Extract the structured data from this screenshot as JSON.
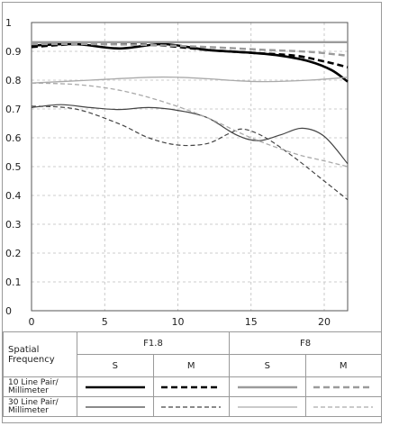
{
  "chart_data": {
    "type": "line",
    "xlim": [
      0,
      21.6
    ],
    "ylim": [
      0,
      1
    ],
    "x_ticks": [
      "0",
      "5",
      "10",
      "15",
      "20"
    ],
    "y_ticks": [
      "1",
      "0.9",
      "0.8",
      "0.7",
      "0.6",
      "0.5",
      "0.4",
      "0.3",
      "0.2",
      "0.1",
      "0"
    ],
    "grid": "dashed",
    "series": [
      {
        "aperture": "F1.8",
        "frequency": "10 Line Pair/ Millimeter",
        "orientation": "S",
        "color": "#000000",
        "width": 2.6,
        "dash": "",
        "points": [
          [
            0,
            0.92
          ],
          [
            3,
            0.925
          ],
          [
            6,
            0.91
          ],
          [
            9,
            0.925
          ],
          [
            12,
            0.905
          ],
          [
            15,
            0.895
          ],
          [
            17,
            0.885
          ],
          [
            19,
            0.865
          ],
          [
            20.5,
            0.835
          ],
          [
            21.6,
            0.795
          ]
        ]
      },
      {
        "aperture": "F1.8",
        "frequency": "10 Line Pair/ Millimeter",
        "orientation": "M",
        "color": "#000000",
        "width": 2.6,
        "dash": "7,4",
        "points": [
          [
            0,
            0.915
          ],
          [
            3,
            0.925
          ],
          [
            6,
            0.925
          ],
          [
            9,
            0.92
          ],
          [
            12,
            0.905
          ],
          [
            15,
            0.895
          ],
          [
            18,
            0.885
          ],
          [
            20,
            0.865
          ],
          [
            21.6,
            0.845
          ]
        ]
      },
      {
        "aperture": "F8",
        "frequency": "10 Line Pair/ Millimeter",
        "orientation": "S",
        "color": "#9b9b9b",
        "width": 2.4,
        "dash": "",
        "points": [
          [
            0,
            0.932
          ],
          [
            10,
            0.932
          ],
          [
            21.6,
            0.932
          ]
        ]
      },
      {
        "aperture": "F8",
        "frequency": "10 Line Pair/ Millimeter",
        "orientation": "M",
        "color": "#9b9b9b",
        "width": 2.4,
        "dash": "7,4",
        "points": [
          [
            0,
            0.925
          ],
          [
            4,
            0.925
          ],
          [
            8,
            0.922
          ],
          [
            12,
            0.915
          ],
          [
            16,
            0.905
          ],
          [
            19,
            0.898
          ],
          [
            21.6,
            0.885
          ]
        ]
      },
      {
        "aperture": "F1.8",
        "frequency": "30 Line Pair/ Millimeter",
        "orientation": "S",
        "color": "#444444",
        "width": 1.2,
        "dash": "",
        "points": [
          [
            0,
            0.705
          ],
          [
            2,
            0.715
          ],
          [
            4,
            0.705
          ],
          [
            6,
            0.698
          ],
          [
            8,
            0.705
          ],
          [
            10,
            0.695
          ],
          [
            12,
            0.67
          ],
          [
            14,
            0.61
          ],
          [
            15.5,
            0.59
          ],
          [
            17,
            0.61
          ],
          [
            18.5,
            0.633
          ],
          [
            20,
            0.605
          ],
          [
            21.6,
            0.51
          ]
        ]
      },
      {
        "aperture": "F1.8",
        "frequency": "30 Line Pair/ Millimeter",
        "orientation": "M",
        "color": "#444444",
        "width": 1.2,
        "dash": "5,3",
        "points": [
          [
            0,
            0.71
          ],
          [
            3,
            0.7
          ],
          [
            6,
            0.648
          ],
          [
            8,
            0.6
          ],
          [
            10,
            0.575
          ],
          [
            12,
            0.58
          ],
          [
            13.5,
            0.615
          ],
          [
            14.5,
            0.63
          ],
          [
            16,
            0.6
          ],
          [
            18,
            0.53
          ],
          [
            20,
            0.45
          ],
          [
            21.6,
            0.385
          ]
        ]
      },
      {
        "aperture": "F8",
        "frequency": "30 Line Pair/ Millimeter",
        "orientation": "S",
        "color": "#aaaaaa",
        "width": 1.3,
        "dash": "",
        "points": [
          [
            0,
            0.79
          ],
          [
            4,
            0.8
          ],
          [
            8,
            0.81
          ],
          [
            10,
            0.81
          ],
          [
            12,
            0.805
          ],
          [
            14,
            0.798
          ],
          [
            16,
            0.795
          ],
          [
            19,
            0.8
          ],
          [
            21.6,
            0.81
          ]
        ]
      },
      {
        "aperture": "F8",
        "frequency": "30 Line Pair/ Millimeter",
        "orientation": "M",
        "color": "#aaaaaa",
        "width": 1.3,
        "dash": "5,3",
        "points": [
          [
            0,
            0.79
          ],
          [
            3,
            0.785
          ],
          [
            6,
            0.765
          ],
          [
            9,
            0.725
          ],
          [
            12,
            0.67
          ],
          [
            15,
            0.6
          ],
          [
            18,
            0.545
          ],
          [
            20,
            0.52
          ],
          [
            21.6,
            0.5
          ]
        ]
      }
    ]
  },
  "legend": {
    "header_row_label": "Spatial Frequency",
    "apertures": [
      "F1.8",
      "F8"
    ],
    "orientations": [
      "S",
      "M",
      "S",
      "M"
    ],
    "rows": [
      {
        "label": "10 Line Pair/ Millimeter"
      },
      {
        "label": "30 Line Pair/ Millimeter"
      }
    ]
  }
}
